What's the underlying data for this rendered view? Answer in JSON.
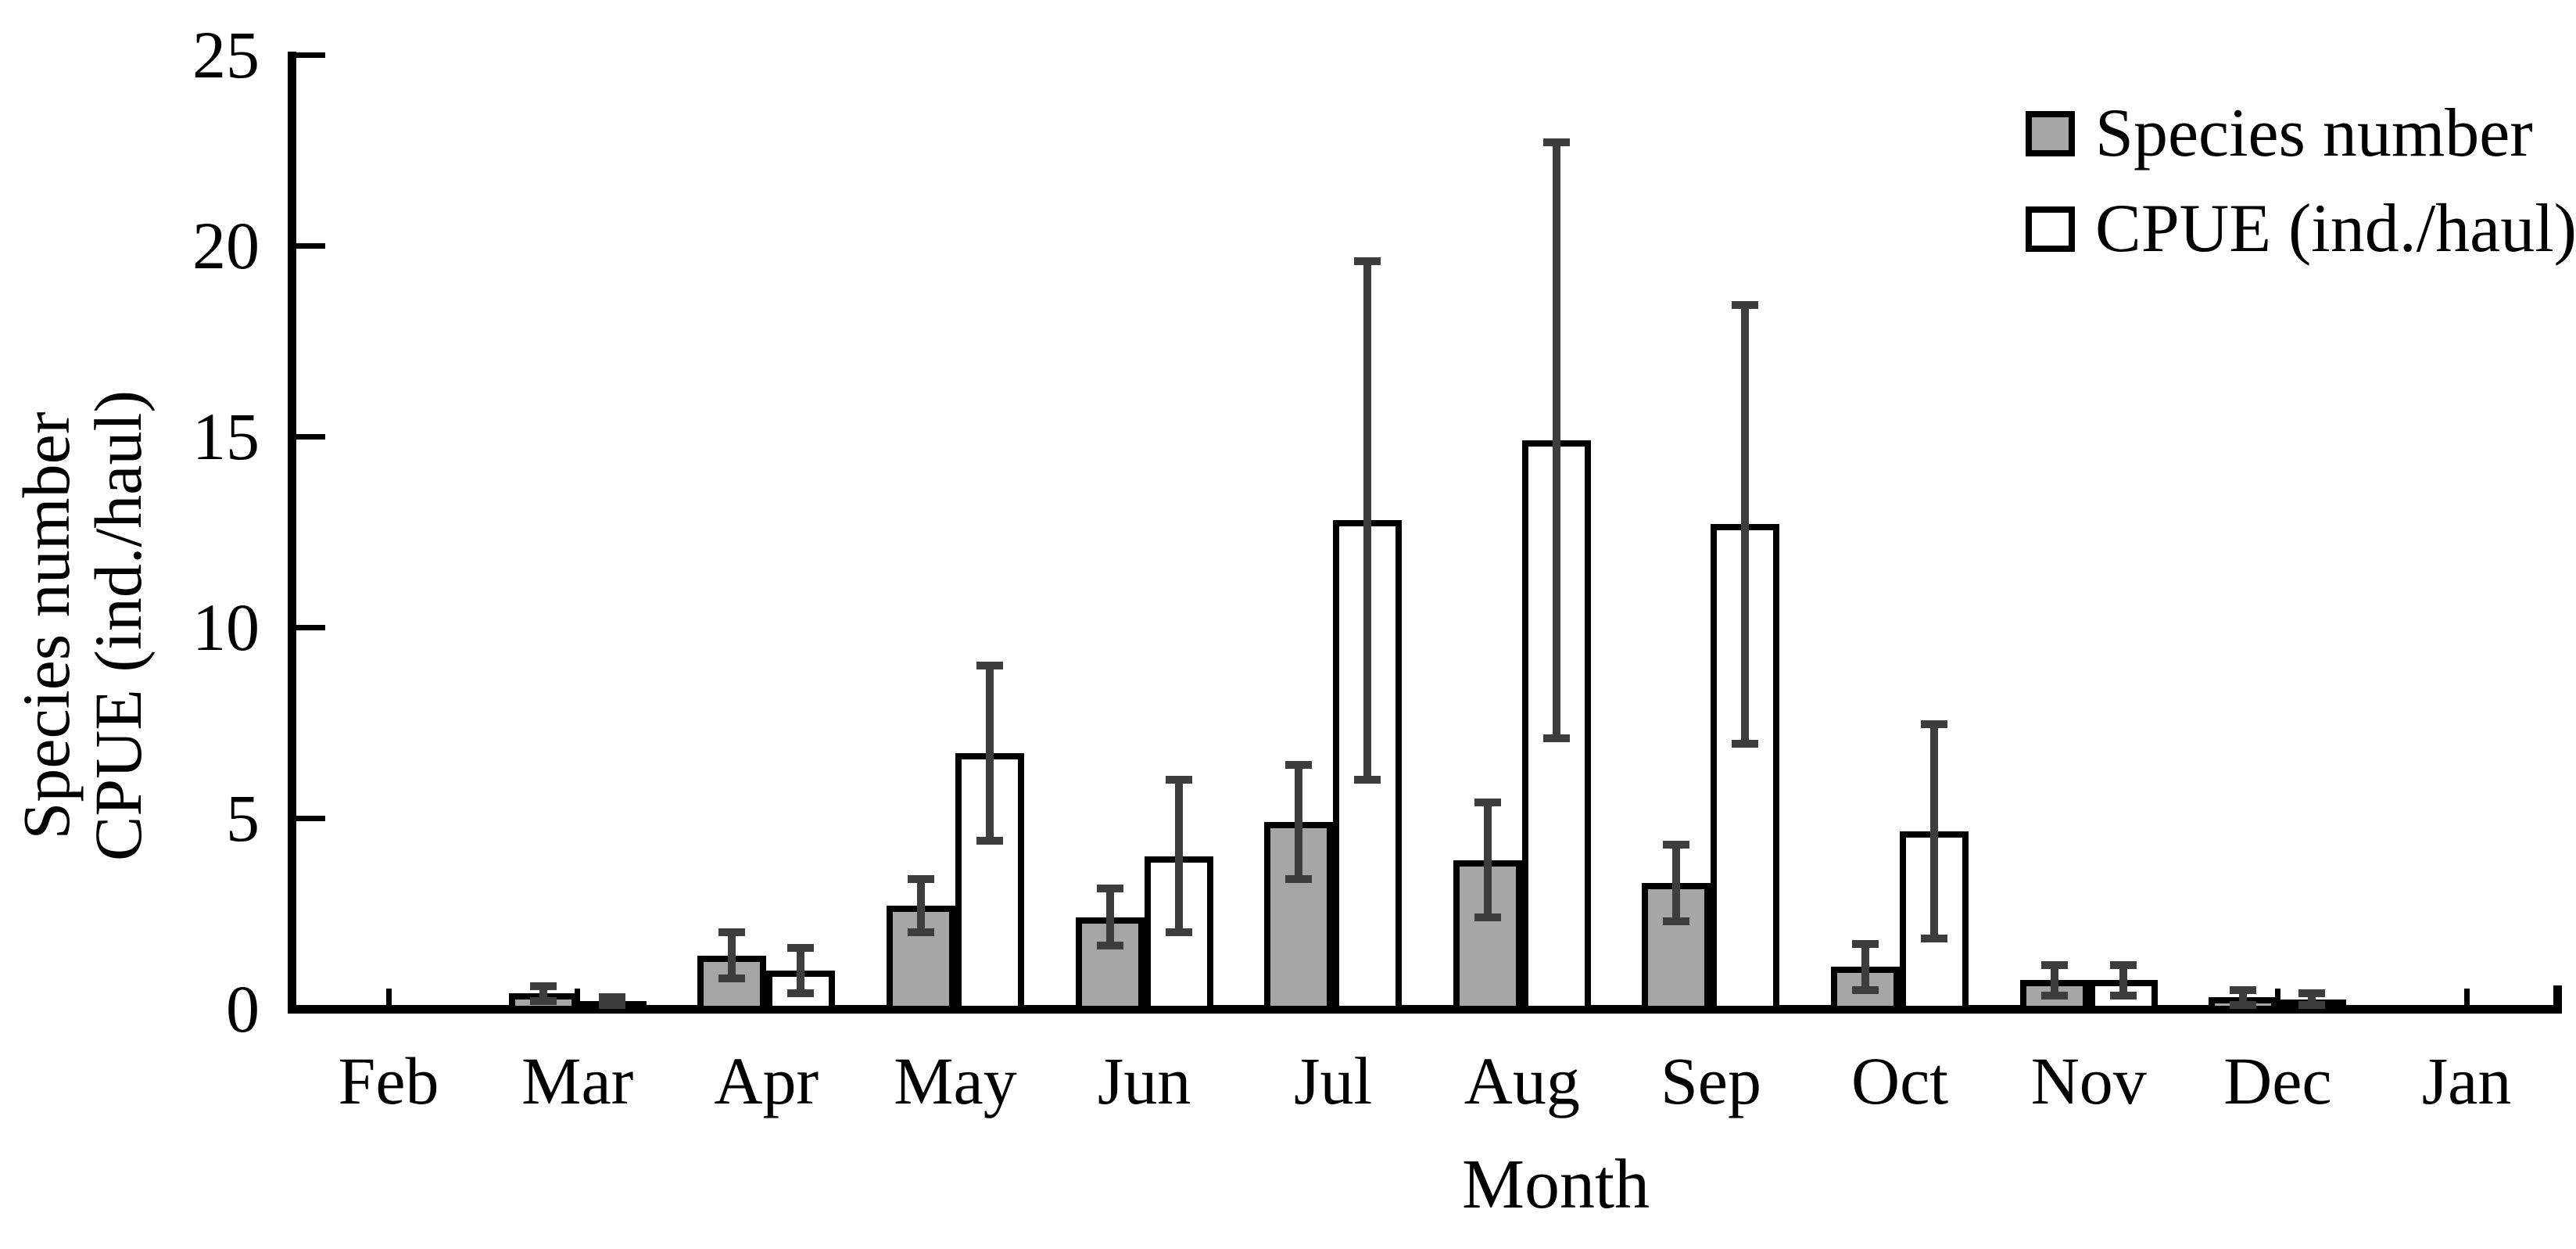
{
  "y_axis": {
    "label_line1": "Species number",
    "label_line2": "CPUE (ind./haul)",
    "tick_labels": [
      "0",
      "5",
      "10",
      "15",
      "20",
      "25"
    ]
  },
  "x_axis": {
    "title": "Month"
  },
  "legend": {
    "items": [
      {
        "label": "Species number",
        "fill": "#a6a6a6"
      },
      {
        "label": "CPUE (ind./haul)",
        "fill": "#ffffff"
      }
    ]
  },
  "colors": {
    "bar_border": "#000000",
    "error_bar": "#3d3d3d",
    "axis": "#000000",
    "background": "#ffffff",
    "gray_fill": "#a6a6a6",
    "white_fill": "#ffffff"
  },
  "chart_data": {
    "type": "bar",
    "categories": [
      "Feb",
      "Mar",
      "Apr",
      "May",
      "Jun",
      "Jul",
      "Aug",
      "Sep",
      "Oct",
      "Nov",
      "Dec",
      "Jan"
    ],
    "series": [
      {
        "name": "Species number",
        "fill": "#a6a6a6",
        "values": [
          0,
          0.4,
          1.4,
          2.7,
          2.4,
          4.9,
          3.9,
          3.3,
          1.1,
          0.75,
          0.3,
          0
        ],
        "error_bars": [
          0,
          0.2,
          0.6,
          0.7,
          0.75,
          1.5,
          1.5,
          1.0,
          0.6,
          0.4,
          0.2,
          0
        ]
      },
      {
        "name": "CPUE (ind./haul)",
        "fill": "#ffffff",
        "values": [
          0,
          0.2,
          1.0,
          6.7,
          4.0,
          12.8,
          14.9,
          12.7,
          4.65,
          0.75,
          0.25,
          0
        ],
        "error_bars": [
          0,
          0.1,
          0.6,
          2.3,
          2.0,
          6.8,
          7.8,
          5.75,
          2.8,
          0.4,
          0.15,
          0
        ]
      }
    ],
    "title": "",
    "xlabel": "Month",
    "ylabel": "Species number / CPUE (ind./haul)",
    "ylim": [
      0,
      25
    ],
    "yticks": [
      0,
      5,
      10,
      15,
      20,
      25
    ],
    "grid": false,
    "legend_position": "top-right",
    "error_bars_shown": true
  }
}
